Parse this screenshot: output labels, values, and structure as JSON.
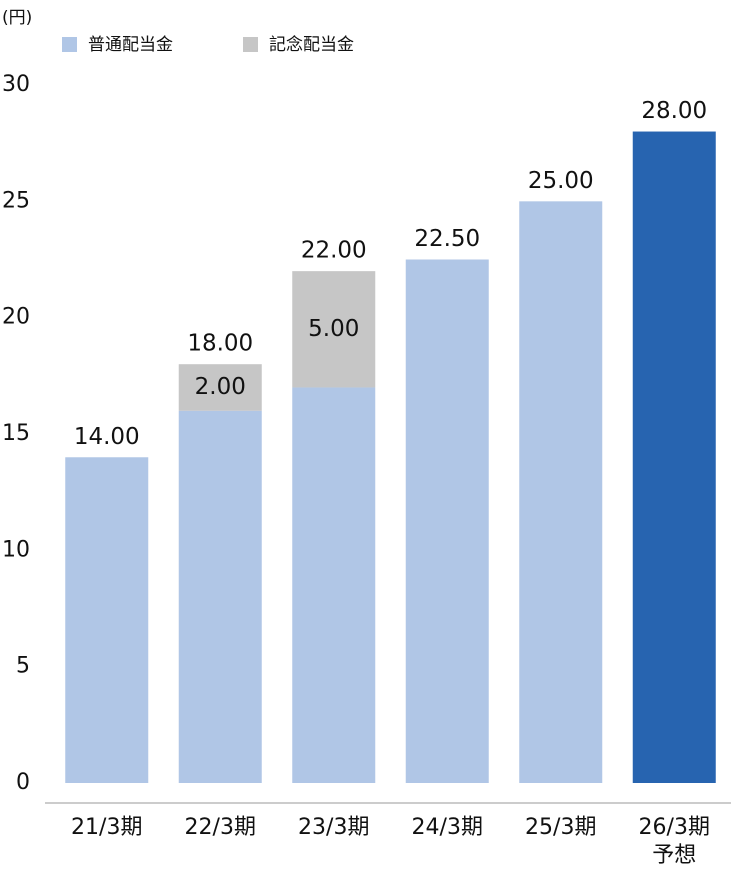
{
  "chart_data": {
    "type": "stacked_bar",
    "unit_label": "(円)",
    "categories": [
      "21/3期",
      "22/3期",
      "23/3期",
      "24/3期",
      "25/3期",
      "26/3期"
    ],
    "category_sublabels": [
      null,
      null,
      null,
      null,
      null,
      "予想"
    ],
    "series": [
      {
        "name": "普通配当金",
        "color": "#b0c6e6",
        "point_colors": [
          "#b0c6e6",
          "#b0c6e6",
          "#b0c6e6",
          "#b0c6e6",
          "#b0c6e6",
          "#2764b0"
        ],
        "values": [
          14,
          16,
          17,
          22.5,
          25,
          28
        ]
      },
      {
        "name": "記念配当金",
        "color": "#c6c6c6",
        "values": [
          null,
          2,
          5,
          null,
          null,
          null
        ],
        "value_labels": [
          null,
          "2.00",
          "5.00",
          null,
          null,
          null
        ]
      }
    ],
    "totals": [
      14,
      18,
      22,
      22.5,
      25,
      28
    ],
    "total_labels": [
      "14.00",
      "18.00",
      "22.00",
      "22.50",
      "25.00",
      "28.00"
    ],
    "ylim": [
      0,
      30
    ],
    "yticks": [
      0,
      5,
      10,
      15,
      20,
      25,
      30
    ],
    "grid": false
  }
}
